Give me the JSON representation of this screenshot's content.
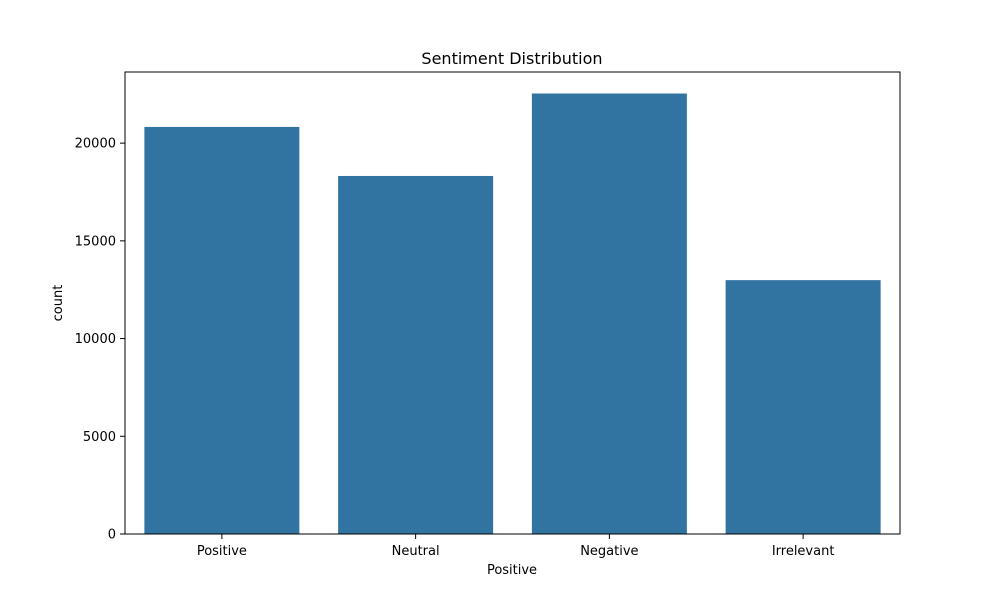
{
  "chart_data": {
    "type": "bar",
    "title": "Sentiment Distribution",
    "xlabel": "Positive",
    "ylabel": "count",
    "categories": [
      "Positive",
      "Neutral",
      "Negative",
      "Irrelevant"
    ],
    "values": [
      20830,
      18320,
      22540,
      12990
    ],
    "ylim": [
      0,
      23640
    ],
    "yticks": [
      0,
      5000,
      10000,
      15000,
      20000
    ],
    "ytick_labels": [
      "0",
      "5000",
      "10000",
      "15000",
      "20000"
    ],
    "bar_color": "#3274a1",
    "grid": false,
    "legend": "none"
  }
}
